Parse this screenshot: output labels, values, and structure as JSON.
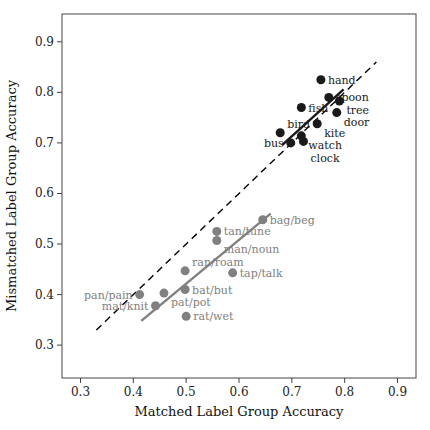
{
  "chart_data": {
    "type": "scatter",
    "xlabel": "Matched Label Group Accuracy",
    "ylabel": "Mismatched Label Group Accuracy",
    "xlim": [
      0.265,
      0.935
    ],
    "ylim": [
      0.235,
      0.955
    ],
    "xticks": [
      0.3,
      0.4,
      0.5,
      0.6,
      0.7,
      0.8,
      0.9
    ],
    "yticks": [
      0.3,
      0.4,
      0.5,
      0.6,
      0.7,
      0.8,
      0.9
    ],
    "series": [
      {
        "type": "scatter",
        "marker": "circle",
        "color": "#1a1a1a",
        "labels": [
          "hand",
          "spoon",
          "tree",
          "fish",
          "door",
          "kite",
          "bird",
          "watch",
          "clock",
          "bus"
        ],
        "x": [
          0.755,
          0.77,
          0.79,
          0.718,
          0.785,
          0.748,
          0.678,
          0.718,
          0.722,
          0.698
        ],
        "values": [
          0.825,
          0.79,
          0.783,
          0.77,
          0.76,
          0.738,
          0.72,
          0.714,
          0.703,
          0.7
        ]
      },
      {
        "type": "scatter",
        "marker": "circle",
        "color": "#808080",
        "labels": [
          "bag/beg",
          "tan/tune",
          "man/noun",
          "tap/talk",
          "ran/roam",
          "bat/but",
          "pat/pot",
          "pan/pain",
          "mat/knit",
          "rat/wet"
        ],
        "x": [
          0.645,
          0.558,
          0.558,
          0.588,
          0.498,
          0.498,
          0.458,
          0.412,
          0.442,
          0.5
        ],
        "values": [
          0.548,
          0.525,
          0.507,
          0.443,
          0.447,
          0.41,
          0.403,
          0.4,
          0.378,
          0.357
        ]
      },
      {
        "type": "line",
        "line_style": "solid",
        "color": "#1a1a1a",
        "x": [
          0.682,
          0.798
        ],
        "values": [
          0.696,
          0.806
        ]
      },
      {
        "type": "line",
        "line_style": "solid",
        "color": "#808080",
        "x": [
          0.415,
          0.66
        ],
        "values": [
          0.348,
          0.56
        ]
      },
      {
        "type": "line",
        "line_style": "dashed",
        "color": "black",
        "x": [
          0.33,
          0.86
        ],
        "values": [
          0.33,
          0.86
        ]
      }
    ]
  }
}
